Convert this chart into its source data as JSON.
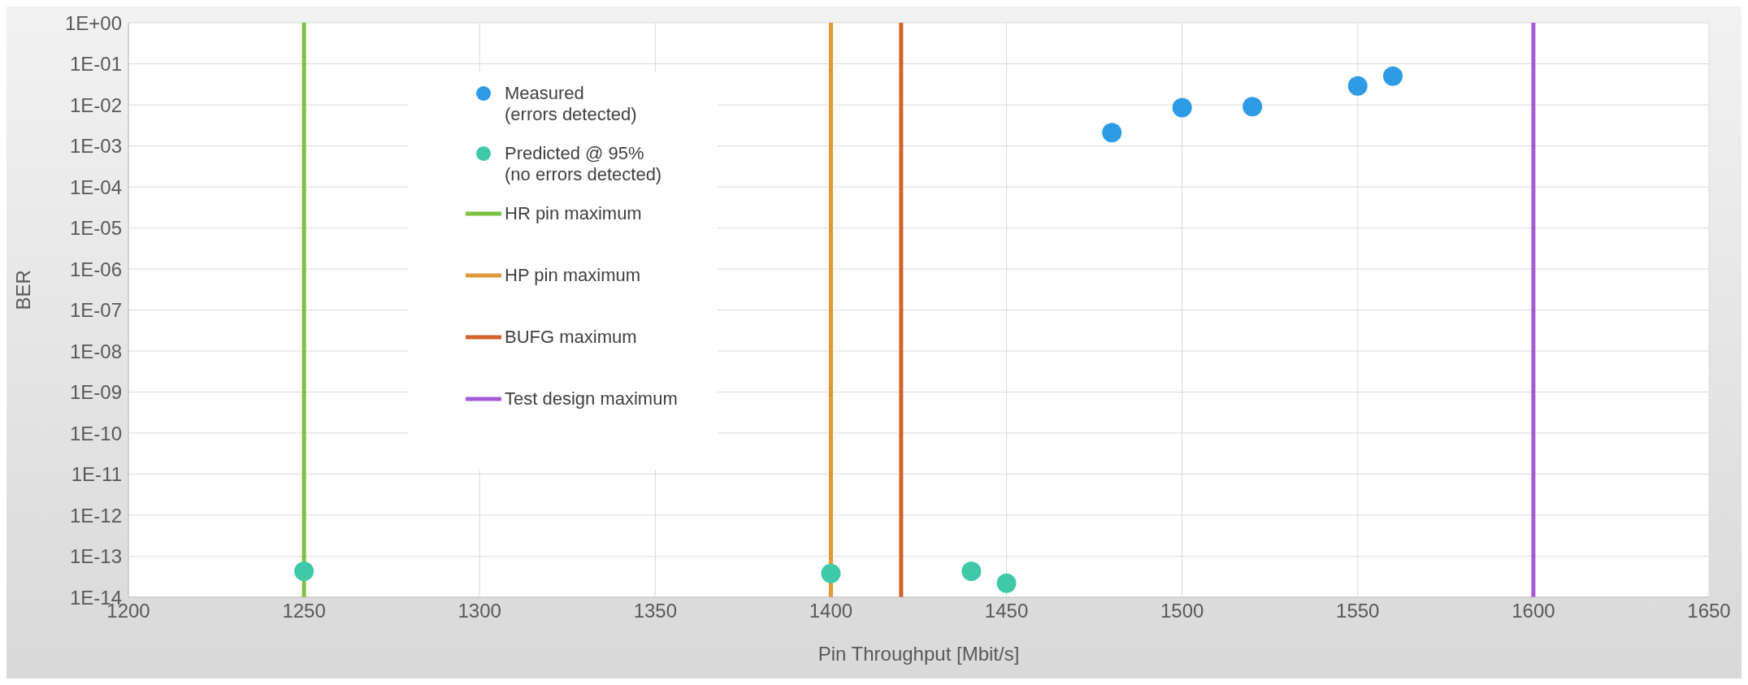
{
  "chart_data": {
    "type": "scatter",
    "xlabel": "Pin Throughput [Mbit/s]",
    "ylabel": "BER",
    "log": "y",
    "grid": true,
    "legend": "top left",
    "xlim": [
      1200,
      1650
    ],
    "xticks": [
      1200,
      1250,
      1300,
      1350,
      1400,
      1450,
      1500,
      1550,
      1600,
      1650
    ],
    "ylim": [
      1e-14,
      1
    ],
    "yticks": [
      {
        "value": 1,
        "label": "1E+00"
      },
      {
        "value": 0.1,
        "label": "1E-01"
      },
      {
        "value": 0.01,
        "label": "1E-02"
      },
      {
        "value": 0.001,
        "label": "1E-03"
      },
      {
        "value": 0.0001,
        "label": "1E-04"
      },
      {
        "value": 1e-05,
        "label": "1E-05"
      },
      {
        "value": 1e-06,
        "label": "1E-06"
      },
      {
        "value": 1e-07,
        "label": "1E-07"
      },
      {
        "value": 1e-08,
        "label": "1E-08"
      },
      {
        "value": 1e-09,
        "label": "1E-09"
      },
      {
        "value": 1e-10,
        "label": "1E-10"
      },
      {
        "value": 1e-11,
        "label": "1E-11"
      },
      {
        "value": 1e-12,
        "label": "1E-12"
      },
      {
        "value": 1e-13,
        "label": "1E-13"
      },
      {
        "value": 1e-14,
        "label": "1E-14"
      }
    ],
    "series": [
      {
        "name": "Measured\n(errors detected)",
        "marker": "circle",
        "color": "#2e9be6",
        "x": [
          1480,
          1500,
          1520,
          1550,
          1560
        ],
        "values": [
          0.0021,
          0.0085,
          0.009,
          0.029,
          0.05
        ]
      },
      {
        "name": "Predicted @ 95%\n(no errors detected)",
        "marker": "circle",
        "color": "#3fc9a8",
        "x": [
          1250,
          1400,
          1440,
          1450
        ],
        "values": [
          4.3e-14,
          3.8e-14,
          4.3e-14,
          2.2e-14
        ]
      },
      {
        "name": "HR pin maximum",
        "type": "line",
        "marker": "none",
        "color": "#7dc142",
        "x": [
          1250,
          1250
        ],
        "values": [
          1e-14,
          1
        ]
      },
      {
        "name": "HP pin maximum",
        "type": "line",
        "marker": "none",
        "color": "#e09a3a",
        "x": [
          1400,
          1400
        ],
        "values": [
          1e-14,
          1
        ]
      },
      {
        "name": "BUFG maximum",
        "type": "line",
        "marker": "none",
        "color": "#d5622a",
        "x": [
          1420,
          1420
        ],
        "values": [
          1e-14,
          1
        ]
      },
      {
        "name": "Test design maximum",
        "type": "line",
        "marker": "none",
        "color": "#a35bd6",
        "x": [
          1600,
          1600
        ],
        "values": [
          1e-14,
          1
        ]
      }
    ]
  }
}
